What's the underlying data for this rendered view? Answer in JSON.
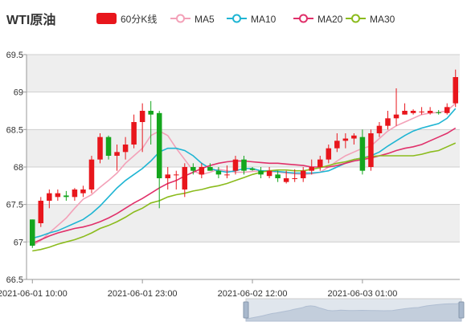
{
  "chart_data": {
    "type": "candlestick",
    "title": "WTI原油",
    "legend": [
      {
        "label": "60分K线",
        "color": "#e8161c",
        "kind": "rect"
      },
      {
        "label": "MA5",
        "color": "#f3a1b8",
        "kind": "line"
      },
      {
        "label": "MA10",
        "color": "#1fb5d3",
        "kind": "line"
      },
      {
        "label": "MA20",
        "color": "#e0306a",
        "kind": "line"
      },
      {
        "label": "MA30",
        "color": "#8bbb1d",
        "kind": "line"
      }
    ],
    "y_ticks": [
      "69.5",
      "69",
      "68.5",
      "68",
      "67.5",
      "67",
      "66.5"
    ],
    "ylim": [
      66.5,
      69.5
    ],
    "x_ticks": [
      {
        "label": "2021-06-01 10:00",
        "index": 0
      },
      {
        "label": "2021-06-01 23:00",
        "index": 13
      },
      {
        "label": "2021-06-02 12:00",
        "index": 26
      },
      {
        "label": "2021-06-03 01:00",
        "index": 39
      }
    ],
    "grid": true,
    "colors": {
      "up": "#e8161c",
      "down": "#14a61d"
    },
    "candles": [
      [
        67.3,
        66.95,
        67.3,
        66.92
      ],
      [
        67.25,
        67.55,
        67.6,
        67.2
      ],
      [
        67.55,
        67.65,
        67.7,
        67.45
      ],
      [
        67.6,
        67.65,
        67.7,
        67.55
      ],
      [
        67.62,
        67.6,
        67.68,
        67.55
      ],
      [
        67.6,
        67.7,
        67.72,
        67.55
      ],
      [
        67.65,
        67.7,
        67.75,
        67.6
      ],
      [
        67.7,
        68.1,
        68.15,
        67.65
      ],
      [
        68.1,
        68.4,
        68.45,
        68.05
      ],
      [
        68.4,
        68.15,
        68.42,
        68.1
      ],
      [
        68.15,
        68.2,
        68.3,
        67.95
      ],
      [
        68.2,
        68.3,
        68.4,
        68.1
      ],
      [
        68.3,
        68.6,
        68.7,
        68.25
      ],
      [
        68.6,
        68.75,
        68.85,
        68.2
      ],
      [
        68.75,
        68.7,
        68.88,
        68.3
      ],
      [
        68.72,
        67.85,
        68.75,
        67.45
      ],
      [
        67.85,
        67.9,
        68.0,
        67.7
      ],
      [
        67.9,
        67.9,
        67.95,
        67.7
      ],
      [
        67.7,
        68.0,
        68.05,
        67.6
      ],
      [
        68.0,
        67.95,
        68.05,
        67.9
      ],
      [
        67.9,
        68.0,
        68.05,
        67.85
      ],
      [
        68.0,
        67.95,
        68.05,
        67.95
      ],
      [
        67.95,
        67.9,
        68.0,
        67.85
      ],
      [
        67.9,
        67.9,
        68.02,
        67.85
      ],
      [
        67.95,
        68.1,
        68.15,
        67.9
      ],
      [
        68.1,
        67.95,
        68.15,
        67.9
      ],
      [
        67.98,
        67.96,
        68.0,
        67.95
      ],
      [
        67.95,
        67.9,
        68.0,
        67.85
      ],
      [
        67.88,
        67.95,
        68.0,
        67.85
      ],
      [
        67.9,
        67.85,
        67.95,
        67.8
      ],
      [
        67.8,
        67.85,
        67.95,
        67.78
      ],
      [
        67.85,
        67.85,
        67.97,
        67.8
      ],
      [
        67.85,
        67.95,
        68.0,
        67.8
      ],
      [
        67.95,
        68.0,
        68.1,
        67.9
      ],
      [
        68.0,
        68.1,
        68.15,
        67.95
      ],
      [
        68.1,
        68.25,
        68.3,
        68.05
      ],
      [
        68.25,
        68.35,
        68.45,
        68.2
      ],
      [
        68.35,
        68.38,
        68.45,
        68.25
      ],
      [
        68.38,
        68.42,
        68.45,
        68.3
      ],
      [
        68.4,
        67.95,
        68.5,
        67.9
      ],
      [
        68.0,
        68.45,
        68.5,
        67.95
      ],
      [
        68.45,
        68.55,
        68.6,
        68.4
      ],
      [
        68.55,
        68.65,
        68.75,
        68.5
      ],
      [
        68.65,
        68.7,
        69.05,
        68.55
      ],
      [
        68.7,
        68.75,
        68.85,
        68.7
      ],
      [
        68.72,
        68.75,
        68.77,
        68.7
      ],
      [
        68.74,
        68.74,
        68.8,
        68.7
      ],
      [
        68.72,
        68.75,
        68.8,
        68.7
      ],
      [
        68.73,
        68.72,
        68.76,
        68.7
      ],
      [
        68.72,
        68.8,
        68.85,
        68.7
      ],
      [
        68.85,
        69.2,
        69.3,
        68.8
      ]
    ],
    "series": [
      {
        "name": "MA5",
        "values": [
          66.95,
          67.02,
          67.12,
          67.22,
          67.32,
          67.45,
          67.57,
          67.63,
          67.73,
          67.82,
          67.92,
          68.05,
          68.15,
          68.25,
          68.42,
          68.48,
          68.42,
          68.25,
          68.1,
          67.95,
          67.9,
          67.93,
          67.97,
          67.95,
          67.93,
          67.93,
          67.94,
          67.95,
          67.94,
          67.93,
          67.92,
          67.91,
          67.9,
          67.91,
          67.93,
          68.0,
          68.08,
          68.15,
          68.2,
          68.25,
          68.28,
          68.38,
          68.48,
          68.55,
          68.6,
          68.65,
          68.7,
          68.72,
          68.73,
          68.75,
          68.85
        ]
      },
      {
        "name": "MA10",
        "values": [
          67.05,
          67.08,
          67.12,
          67.15,
          67.2,
          67.25,
          67.3,
          67.38,
          67.48,
          67.6,
          67.72,
          67.82,
          67.9,
          67.98,
          68.08,
          68.2,
          68.25,
          68.25,
          68.22,
          68.15,
          68.05,
          67.98,
          67.95,
          67.93,
          67.95,
          67.98,
          67.98,
          67.95,
          67.95,
          67.94,
          67.93,
          67.92,
          67.92,
          67.92,
          67.93,
          67.95,
          68.0,
          68.05,
          68.1,
          68.12,
          68.15,
          68.2,
          68.28,
          68.35,
          68.42,
          68.48,
          68.52,
          68.55,
          68.58,
          68.65,
          68.78
        ]
      },
      {
        "name": "MA20",
        "values": [
          66.98,
          67.03,
          67.08,
          67.12,
          67.15,
          67.18,
          67.2,
          67.23,
          67.27,
          67.32,
          67.38,
          67.45,
          67.52,
          67.58,
          67.65,
          67.72,
          67.78,
          67.82,
          67.88,
          67.93,
          67.98,
          68.02,
          68.05,
          68.07,
          68.08,
          68.08,
          68.07,
          68.06,
          68.05,
          68.05,
          68.04,
          68.03,
          68.02,
          68.0,
          68.0,
          68.0,
          68.02,
          68.05,
          68.08,
          68.1,
          68.12,
          68.15,
          68.18,
          68.22,
          68.25,
          68.27,
          68.3,
          68.35,
          68.4,
          68.45,
          68.52
        ]
      },
      {
        "name": "MA30",
        "values": [
          66.88,
          66.9,
          66.93,
          66.97,
          67.0,
          67.03,
          67.07,
          67.12,
          67.18,
          67.22,
          67.27,
          67.33,
          67.4,
          67.45,
          67.52,
          67.55,
          67.6,
          67.63,
          67.65,
          67.68,
          67.7,
          67.73,
          67.75,
          67.78,
          67.82,
          67.86,
          67.9,
          67.93,
          67.95,
          67.96,
          67.96,
          67.95,
          67.95,
          67.97,
          67.99,
          68.02,
          68.05,
          68.07,
          68.1,
          68.12,
          68.14,
          68.15,
          68.15,
          68.15,
          68.15,
          68.15,
          68.17,
          68.2,
          68.22,
          68.27,
          68.32
        ]
      }
    ]
  }
}
